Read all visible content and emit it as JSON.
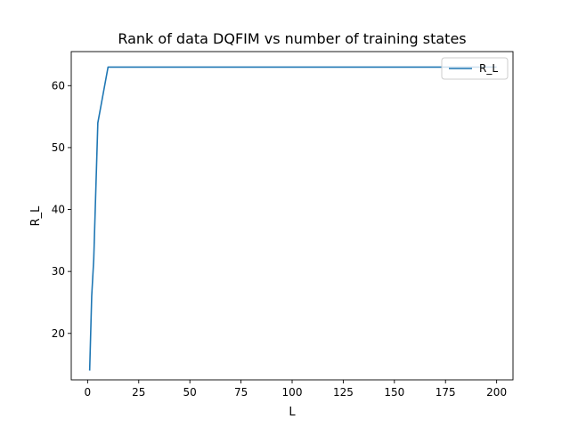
{
  "chart_data": {
    "type": "line",
    "title": "Rank of data DQFIM vs number of training states",
    "xlabel": "L",
    "ylabel": "R_L",
    "xlim": [
      -8,
      208
    ],
    "ylim": [
      12.5,
      65.5
    ],
    "xticks": [
      0,
      25,
      50,
      75,
      100,
      125,
      150,
      175,
      200
    ],
    "yticks": [
      20,
      30,
      40,
      50,
      60
    ],
    "grid": false,
    "legend": "top-right",
    "series": [
      {
        "name": "R_L",
        "color": "#1f77b4",
        "x": [
          1,
          2,
          3,
          5,
          10,
          20,
          50,
          100,
          150,
          200
        ],
        "y": [
          14,
          26,
          32,
          54,
          63,
          63,
          63,
          63,
          63,
          63
        ]
      }
    ]
  }
}
